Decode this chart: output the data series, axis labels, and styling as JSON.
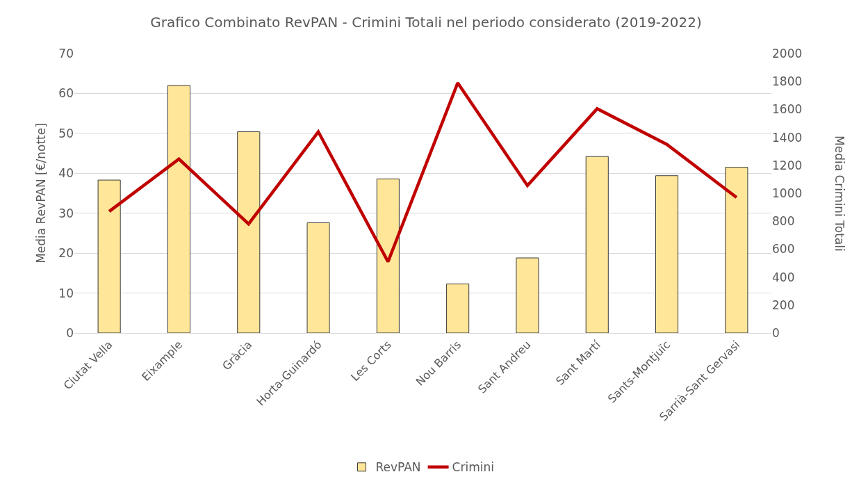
{
  "chart_data": {
    "type": "bar",
    "title": "Grafico Combinato RevPAN - Crimini Totali nel periodo considerato (2019-2022)",
    "ylabel": "Media RevPAN [€/notte]",
    "y2label": "Media Crimini Totali",
    "categories": [
      "Ciutat Vella",
      "Eixample",
      "Gràcia",
      "Horta-Guinardó",
      "Les Corts",
      "Nou Barris",
      "Sant Andreu",
      "Sant Martí",
      "Sants-Montjuïc",
      "Sarrià-Sant Gervasi"
    ],
    "series": [
      {
        "name": "RevPAN",
        "color": "#ffe699",
        "values": [
          38.3,
          62.0,
          50.4,
          27.6,
          38.6,
          12.3,
          18.8,
          44.2,
          39.4,
          41.5
        ]
      },
      {
        "name": "Crimini",
        "type": "line",
        "color": "#c00000",
        "axis": "y2",
        "values": [
          870,
          1245,
          780,
          1440,
          510,
          1790,
          1055,
          1605,
          1350,
          970
        ]
      }
    ],
    "ylim": [
      0,
      70
    ],
    "yticks": [
      0,
      10,
      20,
      30,
      40,
      50,
      60,
      70
    ],
    "y2lim": [
      0,
      2000
    ],
    "y2ticks": [
      0,
      200,
      400,
      600,
      800,
      1000,
      1200,
      1400,
      1600,
      1800,
      2000
    ],
    "grid": "y",
    "legend": "bottom"
  }
}
